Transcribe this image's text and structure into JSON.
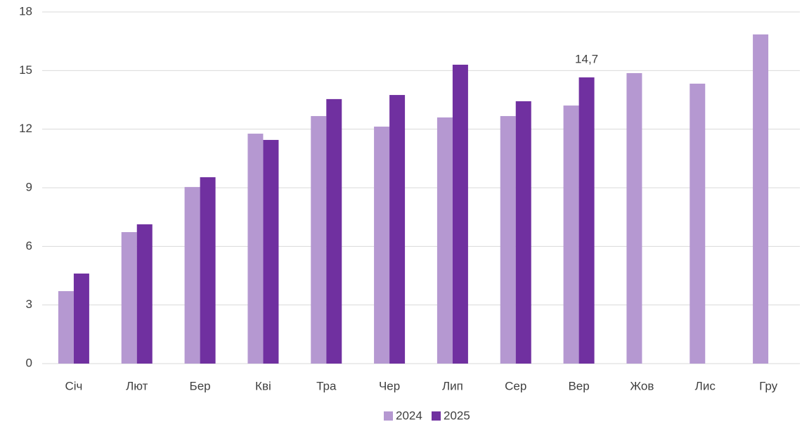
{
  "chart_data": {
    "type": "bar",
    "categories": [
      "Січ",
      "Лют",
      "Бер",
      "Кві",
      "Тра",
      "Чер",
      "Лип",
      "Сер",
      "Вер",
      "Жов",
      "Лис",
      "Гру"
    ],
    "series": [
      {
        "name": "2024",
        "color": "#b598d1",
        "values": [
          3.71,
          6.73,
          9.04,
          11.77,
          12.67,
          12.13,
          12.6,
          12.67,
          13.21,
          14.87,
          14.33,
          16.85
        ]
      },
      {
        "name": "2025",
        "color": "#7030a0",
        "values": [
          4.61,
          7.13,
          9.54,
          11.45,
          13.54,
          13.75,
          15.3,
          13.43,
          14.65,
          null,
          null,
          null
        ],
        "value_labels": [
          null,
          null,
          null,
          null,
          null,
          null,
          null,
          null,
          "14,7",
          null,
          null,
          null
        ]
      }
    ],
    "ylim": [
      0,
      18
    ],
    "yticks": [
      0,
      3,
      6,
      9,
      12,
      15,
      18
    ],
    "grid": true,
    "legend": "bottom"
  }
}
